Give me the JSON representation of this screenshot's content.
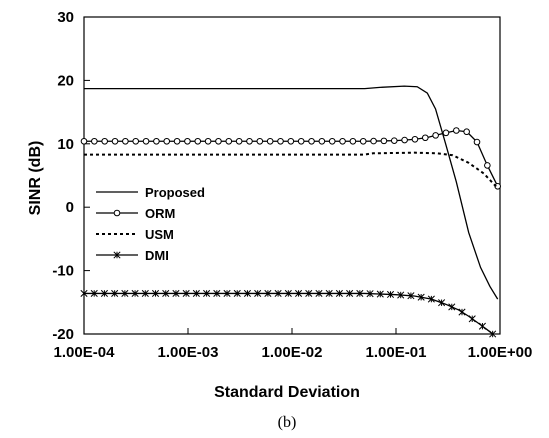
{
  "chart_data": {
    "type": "line",
    "title": "",
    "xlabel": "Standard Deviation",
    "ylabel": "SINR (dB)",
    "x_scale": "log",
    "xlim": [
      0.0001,
      1.0
    ],
    "ylim": [
      -20,
      30
    ],
    "x_tick_labels": [
      "1.00E-04",
      "1.00E-03",
      "1.00E-02",
      "1.00E-01",
      "1.00E+00"
    ],
    "x_tick_values": [
      0.0001,
      0.001,
      0.01,
      0.1,
      1.0
    ],
    "y_tick_labels": [
      "-20",
      "-10",
      "0",
      "10",
      "20",
      "30"
    ],
    "y_tick_values": [
      -20,
      -10,
      0,
      10,
      20,
      30
    ],
    "grid": false,
    "legend_position": "left",
    "caption": "(b)",
    "series": [
      {
        "name": "Proposed",
        "style": "solid",
        "marker": "none",
        "points": [
          [
            0.0001,
            18.7
          ],
          [
            0.001,
            18.7
          ],
          [
            0.01,
            18.7
          ],
          [
            0.05,
            18.7
          ],
          [
            0.07,
            18.9
          ],
          [
            0.12,
            19.1
          ],
          [
            0.16,
            19.0
          ],
          [
            0.2,
            18.0
          ],
          [
            0.24,
            15.5
          ],
          [
            0.3,
            10.0
          ],
          [
            0.38,
            4.0
          ],
          [
            0.5,
            -4.0
          ],
          [
            0.65,
            -9.5
          ],
          [
            0.8,
            -12.5
          ],
          [
            0.95,
            -14.5
          ]
        ]
      },
      {
        "name": "ORM",
        "style": "solid",
        "marker": "circle",
        "points": [
          [
            0.0001,
            10.4
          ],
          [
            0.001,
            10.4
          ],
          [
            0.01,
            10.4
          ],
          [
            0.05,
            10.4
          ],
          [
            0.1,
            10.5
          ],
          [
            0.15,
            10.7
          ],
          [
            0.2,
            11.0
          ],
          [
            0.28,
            11.6
          ],
          [
            0.38,
            12.1
          ],
          [
            0.48,
            11.9
          ],
          [
            0.6,
            10.3
          ],
          [
            0.75,
            6.7
          ],
          [
            0.95,
            3.3
          ]
        ]
      },
      {
        "name": "USM",
        "style": "dotted",
        "marker": "none",
        "points": [
          [
            0.0001,
            8.3
          ],
          [
            0.001,
            8.3
          ],
          [
            0.01,
            8.3
          ],
          [
            0.05,
            8.3
          ],
          [
            0.06,
            8.5
          ],
          [
            0.15,
            8.6
          ],
          [
            0.25,
            8.5
          ],
          [
            0.35,
            8.2
          ],
          [
            0.5,
            7.0
          ],
          [
            0.7,
            5.3
          ],
          [
            0.95,
            3.0
          ]
        ]
      },
      {
        "name": "DMI",
        "style": "solid",
        "marker": "asterisk",
        "points": [
          [
            0.0001,
            -13.6
          ],
          [
            0.001,
            -13.6
          ],
          [
            0.01,
            -13.6
          ],
          [
            0.05,
            -13.6
          ],
          [
            0.1,
            -13.8
          ],
          [
            0.15,
            -14.0
          ],
          [
            0.22,
            -14.5
          ],
          [
            0.3,
            -15.3
          ],
          [
            0.4,
            -16.2
          ],
          [
            0.5,
            -17.2
          ],
          [
            0.62,
            -18.3
          ],
          [
            0.75,
            -19.3
          ],
          [
            0.85,
            -20.0
          ]
        ]
      }
    ]
  }
}
